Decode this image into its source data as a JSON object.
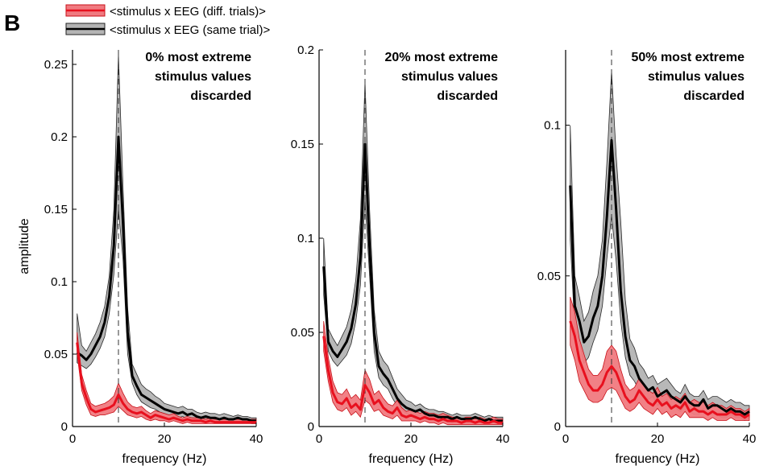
{
  "figure": {
    "panel_letter": "B",
    "legend": [
      {
        "label": "<stimulus x EEG (diff. trials)>",
        "line_color": "#e8101e",
        "band_color": "#f07a80"
      },
      {
        "label": "<stimulus x EEG (same trial)>",
        "line_color": "#000000",
        "band_color": "#b4b4b4"
      }
    ],
    "marker_frequency": 10
  },
  "chart_data": [
    {
      "type": "line",
      "title": [
        "0% most extreme",
        "stimulus values",
        "discarded"
      ],
      "xlabel": "frequency (Hz)",
      "ylabel": "amplitude",
      "xlim": [
        0,
        40
      ],
      "ylim": [
        0,
        0.26
      ],
      "xticks": [
        0,
        20,
        40
      ],
      "yticks": [
        0,
        0.05,
        0.1,
        0.15,
        0.2,
        0.25
      ],
      "ytick_labels": [
        "0",
        "0.05",
        "0.1",
        "0.15",
        "0.2",
        "0.25"
      ],
      "grid": false,
      "x": [
        1,
        2,
        3,
        4,
        5,
        6,
        7,
        8,
        9,
        10,
        11,
        12,
        13,
        14,
        15,
        16,
        17,
        18,
        19,
        20,
        21,
        22,
        23,
        24,
        25,
        26,
        27,
        28,
        29,
        30,
        31,
        32,
        33,
        34,
        35,
        36,
        37,
        38,
        39,
        40
      ],
      "series": [
        {
          "name": "<stimulus x EEG (same trial)>",
          "values": [
            0.051,
            0.049,
            0.046,
            0.05,
            0.056,
            0.062,
            0.072,
            0.09,
            0.125,
            0.2,
            0.14,
            0.065,
            0.035,
            0.028,
            0.022,
            0.02,
            0.018,
            0.016,
            0.014,
            0.012,
            0.011,
            0.01,
            0.009,
            0.01,
            0.008,
            0.009,
            0.007,
            0.006,
            0.007,
            0.006,
            0.006,
            0.005,
            0.006,
            0.005,
            0.005,
            0.006,
            0.005,
            0.005,
            0.004,
            0.004
          ],
          "lower": [
            0.044,
            0.042,
            0.04,
            0.043,
            0.048,
            0.054,
            0.062,
            0.078,
            0.105,
            0.15,
            0.115,
            0.05,
            0.03,
            0.022,
            0.017,
            0.015,
            0.013,
            0.012,
            0.01,
            0.009,
            0.008,
            0.007,
            0.006,
            0.007,
            0.005,
            0.006,
            0.005,
            0.004,
            0.005,
            0.004,
            0.004,
            0.003,
            0.004,
            0.003,
            0.003,
            0.004,
            0.003,
            0.003,
            0.002,
            0.002
          ],
          "upper": [
            0.078,
            0.056,
            0.052,
            0.058,
            0.064,
            0.072,
            0.083,
            0.104,
            0.15,
            0.257,
            0.165,
            0.082,
            0.043,
            0.036,
            0.029,
            0.026,
            0.024,
            0.021,
            0.019,
            0.016,
            0.015,
            0.014,
            0.013,
            0.014,
            0.012,
            0.012,
            0.01,
            0.009,
            0.01,
            0.009,
            0.009,
            0.008,
            0.009,
            0.008,
            0.007,
            0.008,
            0.007,
            0.007,
            0.006,
            0.006
          ]
        },
        {
          "name": "<stimulus x EEG (diff. trials)>",
          "values": [
            0.058,
            0.03,
            0.02,
            0.012,
            0.01,
            0.011,
            0.012,
            0.013,
            0.015,
            0.022,
            0.016,
            0.012,
            0.01,
            0.009,
            0.01,
            0.008,
            0.006,
            0.008,
            0.007,
            0.006,
            0.005,
            0.006,
            0.005,
            0.004,
            0.005,
            0.004,
            0.004,
            0.004,
            0.003,
            0.004,
            0.003,
            0.003,
            0.003,
            0.003,
            0.003,
            0.003,
            0.003,
            0.003,
            0.003,
            0.003
          ],
          "lower": [
            0.05,
            0.025,
            0.015,
            0.008,
            0.007,
            0.008,
            0.008,
            0.009,
            0.01,
            0.014,
            0.011,
            0.008,
            0.007,
            0.006,
            0.007,
            0.005,
            0.004,
            0.005,
            0.004,
            0.004,
            0.003,
            0.004,
            0.003,
            0.002,
            0.003,
            0.002,
            0.002,
            0.002,
            0.002,
            0.002,
            0.002,
            0.002,
            0.002,
            0.002,
            0.002,
            0.002,
            0.002,
            0.002,
            0.002,
            0.002
          ],
          "upper": [
            0.065,
            0.036,
            0.025,
            0.016,
            0.014,
            0.015,
            0.016,
            0.018,
            0.021,
            0.03,
            0.023,
            0.017,
            0.014,
            0.013,
            0.014,
            0.011,
            0.009,
            0.011,
            0.01,
            0.009,
            0.008,
            0.009,
            0.007,
            0.006,
            0.007,
            0.006,
            0.006,
            0.006,
            0.005,
            0.006,
            0.005,
            0.005,
            0.005,
            0.005,
            0.005,
            0.005,
            0.005,
            0.005,
            0.005,
            0.005
          ]
        }
      ]
    },
    {
      "type": "line",
      "title": [
        "20% most extreme",
        "stimulus values",
        "discarded"
      ],
      "xlabel": "frequency (Hz)",
      "ylabel": "",
      "xlim": [
        0,
        40
      ],
      "ylim": [
        0,
        0.2
      ],
      "xticks": [
        0,
        20,
        40
      ],
      "yticks": [
        0,
        0.05,
        0.1,
        0.15,
        0.2
      ],
      "ytick_labels": [
        "0",
        "0.05",
        "0.1",
        "0.15",
        "0.2"
      ],
      "grid": false,
      "x": [
        1,
        2,
        3,
        4,
        5,
        6,
        7,
        8,
        9,
        10,
        11,
        12,
        13,
        14,
        15,
        16,
        17,
        18,
        19,
        20,
        21,
        22,
        23,
        24,
        25,
        26,
        27,
        28,
        29,
        30,
        31,
        32,
        33,
        34,
        35,
        36,
        37,
        38,
        39,
        40
      ],
      "series": [
        {
          "name": "<stimulus x EEG (same trial)>",
          "values": [
            0.085,
            0.045,
            0.04,
            0.037,
            0.041,
            0.045,
            0.052,
            0.065,
            0.09,
            0.15,
            0.095,
            0.05,
            0.032,
            0.028,
            0.025,
            0.02,
            0.015,
            0.012,
            0.01,
            0.009,
            0.008,
            0.009,
            0.007,
            0.006,
            0.006,
            0.005,
            0.005,
            0.005,
            0.004,
            0.005,
            0.004,
            0.004,
            0.004,
            0.005,
            0.004,
            0.003,
            0.004,
            0.003,
            0.003,
            0.003
          ],
          "lower": [
            0.07,
            0.04,
            0.035,
            0.032,
            0.035,
            0.038,
            0.044,
            0.056,
            0.075,
            0.12,
            0.08,
            0.04,
            0.026,
            0.022,
            0.02,
            0.015,
            0.011,
            0.009,
            0.007,
            0.006,
            0.006,
            0.006,
            0.005,
            0.004,
            0.004,
            0.003,
            0.003,
            0.003,
            0.002,
            0.003,
            0.002,
            0.002,
            0.002,
            0.003,
            0.002,
            0.002,
            0.002,
            0.002,
            0.002,
            0.002
          ],
          "upper": [
            0.1,
            0.052,
            0.047,
            0.043,
            0.048,
            0.053,
            0.062,
            0.078,
            0.11,
            0.183,
            0.115,
            0.062,
            0.04,
            0.035,
            0.032,
            0.026,
            0.02,
            0.017,
            0.014,
            0.013,
            0.011,
            0.012,
            0.01,
            0.009,
            0.009,
            0.008,
            0.008,
            0.007,
            0.006,
            0.007,
            0.006,
            0.006,
            0.006,
            0.007,
            0.006,
            0.005,
            0.006,
            0.005,
            0.005,
            0.005
          ]
        },
        {
          "name": "<stimulus x EEG (diff. trials)>",
          "values": [
            0.048,
            0.03,
            0.018,
            0.013,
            0.012,
            0.015,
            0.01,
            0.012,
            0.009,
            0.022,
            0.018,
            0.012,
            0.014,
            0.01,
            0.008,
            0.007,
            0.01,
            0.006,
            0.005,
            0.006,
            0.005,
            0.004,
            0.005,
            0.004,
            0.004,
            0.003,
            0.004,
            0.003,
            0.003,
            0.003,
            0.002,
            0.003,
            0.003,
            0.002,
            0.003,
            0.002,
            0.002,
            0.003,
            0.002,
            0.002
          ],
          "lower": [
            0.04,
            0.024,
            0.013,
            0.009,
            0.008,
            0.01,
            0.006,
            0.008,
            0.005,
            0.014,
            0.012,
            0.008,
            0.009,
            0.006,
            0.005,
            0.004,
            0.006,
            0.003,
            0.003,
            0.003,
            0.003,
            0.002,
            0.003,
            0.002,
            0.002,
            0.001,
            0.002,
            0.001,
            0.001,
            0.001,
            0.001,
            0.001,
            0.001,
            0.001,
            0.001,
            0.001,
            0.001,
            0.001,
            0.001,
            0.001
          ],
          "upper": [
            0.056,
            0.037,
            0.024,
            0.018,
            0.017,
            0.02,
            0.015,
            0.017,
            0.014,
            0.03,
            0.025,
            0.017,
            0.019,
            0.015,
            0.012,
            0.011,
            0.014,
            0.01,
            0.008,
            0.009,
            0.008,
            0.007,
            0.008,
            0.007,
            0.007,
            0.006,
            0.007,
            0.006,
            0.005,
            0.005,
            0.004,
            0.005,
            0.005,
            0.004,
            0.005,
            0.004,
            0.004,
            0.005,
            0.004,
            0.004
          ]
        }
      ]
    },
    {
      "type": "line",
      "title": [
        "50% most extreme",
        "stimulus values",
        "discarded"
      ],
      "xlabel": "frequency (Hz)",
      "ylabel": "",
      "xlim": [
        0,
        40
      ],
      "ylim": [
        0,
        0.125
      ],
      "xticks": [
        0,
        20,
        40
      ],
      "yticks": [
        0,
        0.05,
        0.1
      ],
      "ytick_labels": [
        "0",
        "0.05",
        "0.1"
      ],
      "grid": false,
      "x": [
        1,
        2,
        3,
        4,
        5,
        6,
        7,
        8,
        9,
        10,
        11,
        12,
        13,
        14,
        15,
        16,
        17,
        18,
        19,
        20,
        21,
        22,
        23,
        24,
        25,
        26,
        27,
        28,
        29,
        30,
        31,
        32,
        33,
        34,
        35,
        36,
        37,
        38,
        39,
        40
      ],
      "series": [
        {
          "name": "<stimulus x EEG (same trial)>",
          "values": [
            0.08,
            0.04,
            0.035,
            0.028,
            0.03,
            0.036,
            0.04,
            0.05,
            0.07,
            0.095,
            0.072,
            0.045,
            0.03,
            0.022,
            0.02,
            0.016,
            0.014,
            0.012,
            0.013,
            0.01,
            0.011,
            0.012,
            0.01,
            0.009,
            0.008,
            0.01,
            0.008,
            0.007,
            0.007,
            0.009,
            0.006,
            0.007,
            0.007,
            0.006,
            0.005,
            0.006,
            0.005,
            0.005,
            0.004,
            0.005
          ],
          "lower": [
            0.062,
            0.032,
            0.028,
            0.021,
            0.023,
            0.028,
            0.032,
            0.04,
            0.056,
            0.07,
            0.055,
            0.035,
            0.023,
            0.017,
            0.015,
            0.012,
            0.01,
            0.009,
            0.01,
            0.007,
            0.008,
            0.009,
            0.007,
            0.006,
            0.005,
            0.007,
            0.005,
            0.004,
            0.004,
            0.006,
            0.004,
            0.004,
            0.004,
            0.003,
            0.003,
            0.004,
            0.003,
            0.003,
            0.002,
            0.003
          ],
          "upper": [
            0.1,
            0.05,
            0.043,
            0.035,
            0.038,
            0.045,
            0.05,
            0.062,
            0.088,
            0.118,
            0.09,
            0.068,
            0.042,
            0.029,
            0.026,
            0.021,
            0.019,
            0.016,
            0.017,
            0.014,
            0.015,
            0.016,
            0.014,
            0.012,
            0.011,
            0.014,
            0.011,
            0.01,
            0.01,
            0.012,
            0.009,
            0.01,
            0.01,
            0.009,
            0.008,
            0.009,
            0.008,
            0.008,
            0.007,
            0.007
          ]
        },
        {
          "name": "<stimulus x EEG (diff. trials)>",
          "values": [
            0.035,
            0.03,
            0.022,
            0.018,
            0.014,
            0.012,
            0.012,
            0.014,
            0.018,
            0.02,
            0.018,
            0.014,
            0.01,
            0.008,
            0.009,
            0.012,
            0.01,
            0.008,
            0.007,
            0.009,
            0.007,
            0.008,
            0.006,
            0.007,
            0.006,
            0.008,
            0.005,
            0.006,
            0.005,
            0.005,
            0.004,
            0.005,
            0.004,
            0.004,
            0.004,
            0.005,
            0.004,
            0.004,
            0.003,
            0.004
          ],
          "lower": [
            0.027,
            0.022,
            0.015,
            0.012,
            0.009,
            0.008,
            0.008,
            0.009,
            0.012,
            0.013,
            0.012,
            0.009,
            0.006,
            0.005,
            0.006,
            0.008,
            0.006,
            0.005,
            0.004,
            0.006,
            0.004,
            0.005,
            0.003,
            0.004,
            0.003,
            0.005,
            0.003,
            0.003,
            0.003,
            0.003,
            0.002,
            0.003,
            0.002,
            0.002,
            0.002,
            0.003,
            0.002,
            0.002,
            0.002,
            0.002
          ],
          "upper": [
            0.043,
            0.038,
            0.029,
            0.024,
            0.019,
            0.017,
            0.017,
            0.019,
            0.025,
            0.027,
            0.025,
            0.019,
            0.014,
            0.012,
            0.013,
            0.016,
            0.014,
            0.012,
            0.011,
            0.013,
            0.01,
            0.011,
            0.009,
            0.01,
            0.009,
            0.011,
            0.008,
            0.009,
            0.008,
            0.008,
            0.007,
            0.008,
            0.007,
            0.007,
            0.006,
            0.007,
            0.006,
            0.006,
            0.005,
            0.006
          ]
        }
      ]
    }
  ]
}
